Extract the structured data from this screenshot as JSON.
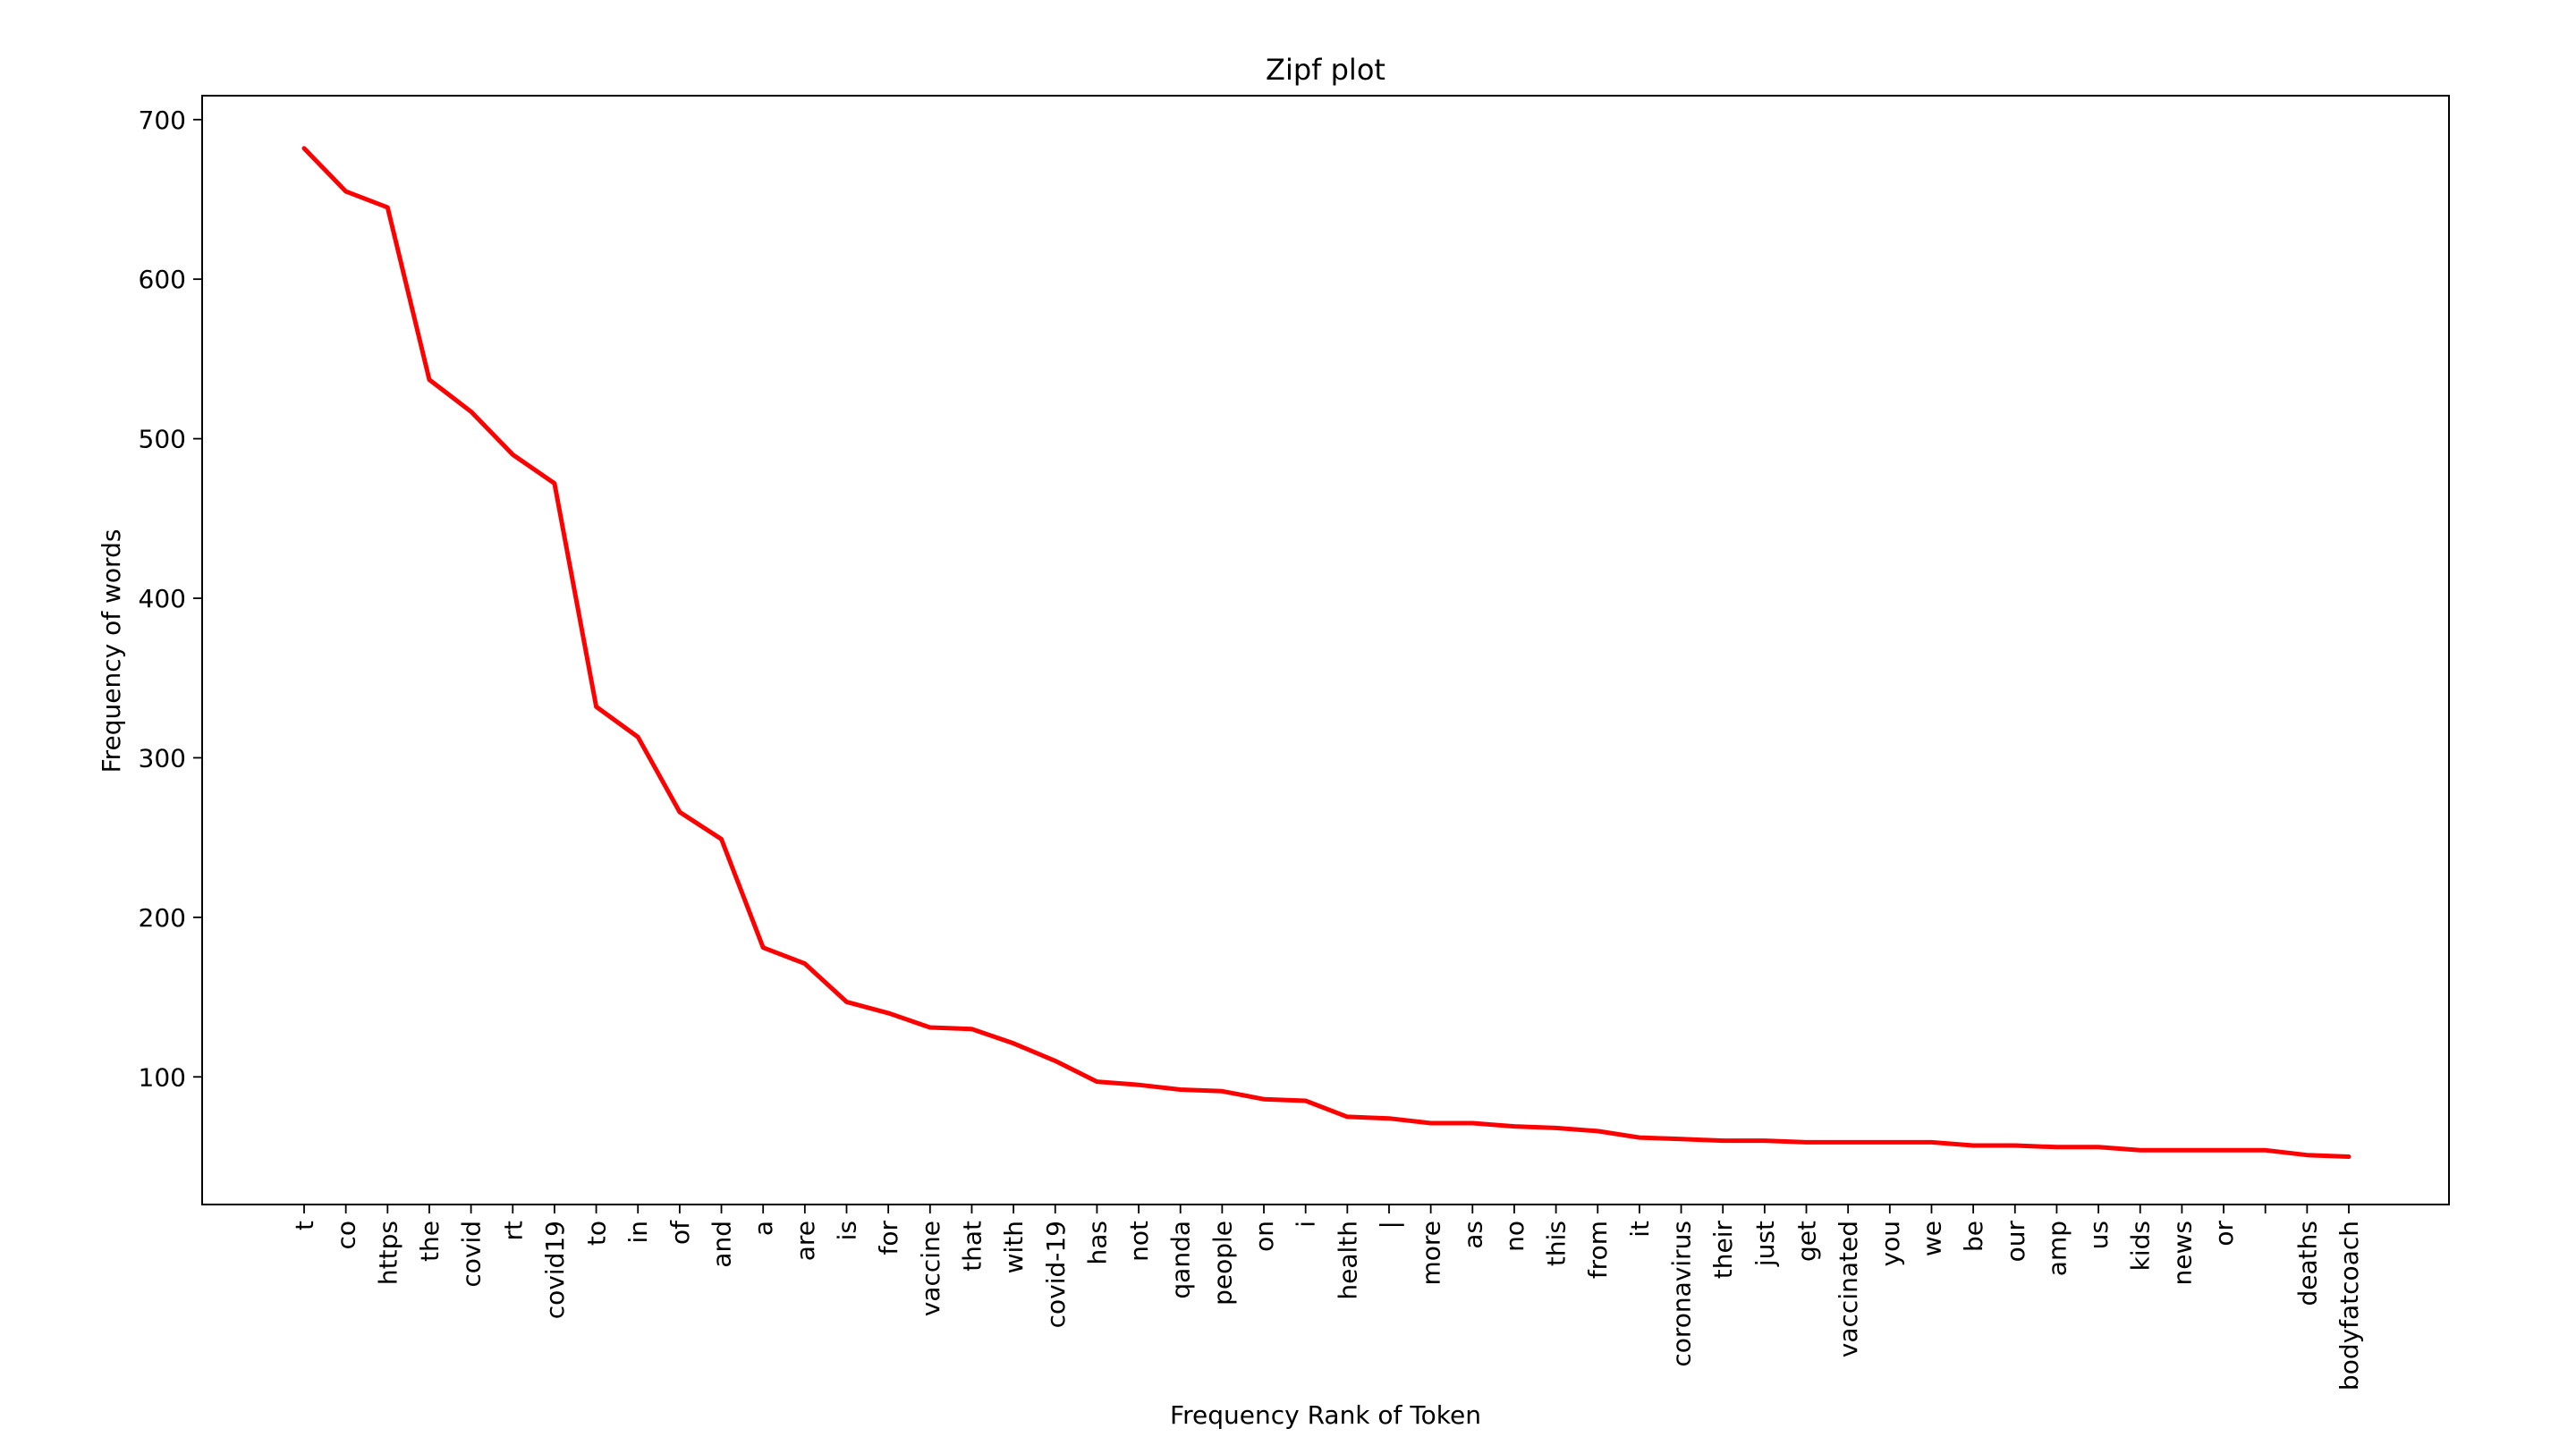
{
  "chart_data": {
    "type": "line",
    "title": "Zipf plot",
    "xlabel": "Frequency Rank of Token",
    "ylabel": "Frequency of words",
    "ylim": [
      20,
      715
    ],
    "yticks": [
      100,
      200,
      300,
      400,
      500,
      600,
      700
    ],
    "grid": false,
    "legend": "none",
    "line_color": "#ff0000",
    "categories": [
      "t",
      "co",
      "https",
      "the",
      "covid",
      "rt",
      "covid19",
      "to",
      "in",
      "of",
      "and",
      "a",
      "are",
      "is",
      "for",
      "vaccine",
      "that",
      "with",
      "covid-19",
      "has",
      "not",
      "qanda",
      "people",
      "on",
      "i",
      "health",
      "|",
      "more",
      "as",
      "no",
      "this",
      "from",
      "it",
      "coronavirus",
      "their",
      "just",
      "get",
      "vaccinated",
      "you",
      "we",
      "be",
      "our",
      "amp",
      "us",
      "kids",
      "news",
      "or",
      "",
      "deaths",
      "bodyfatcoach"
    ],
    "series": [
      {
        "values": [
          682,
          655,
          645,
          537,
          517,
          490,
          472,
          332,
          313,
          266,
          249,
          181,
          171,
          147,
          140,
          131,
          130,
          121,
          110,
          97,
          95,
          92,
          91,
          86,
          85,
          75,
          74,
          71,
          71,
          69,
          68,
          66,
          62,
          61,
          60,
          60,
          59,
          59,
          59,
          59,
          57,
          57,
          56,
          56,
          54,
          54,
          54,
          54,
          51,
          50
        ]
      }
    ]
  }
}
